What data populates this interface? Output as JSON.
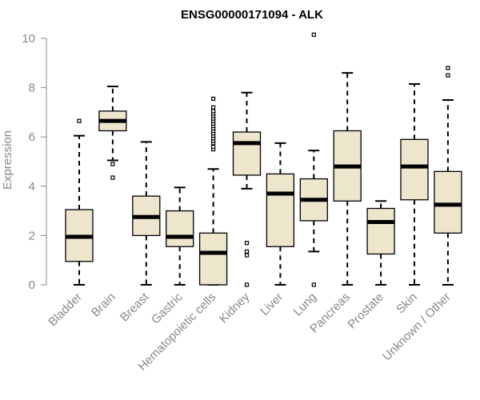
{
  "chart_data": {
    "type": "boxplot",
    "title": "ENSG00000171094 - ALK",
    "xlabel": "",
    "ylabel": "Expression",
    "ylim": [
      0,
      10
    ],
    "yticks": [
      0,
      2,
      4,
      6,
      8,
      10
    ],
    "grid": false,
    "colors": {
      "box_fill": "#ede6cd",
      "stroke": "#000000",
      "axis": "#888888",
      "title": "#000000"
    },
    "categories": [
      "Bladder",
      "Brain",
      "Breast",
      "Gastric",
      "Hematopoietic cells",
      "Kidney",
      "Liver",
      "Lung",
      "Pancreas",
      "Prostate",
      "Skin",
      "Unknown / Other"
    ],
    "boxes": [
      {
        "label": "Bladder",
        "whisker_low": 0.0,
        "q1": 0.95,
        "median": 1.95,
        "q3": 3.05,
        "whisker_high": 6.05,
        "outliers": [
          6.65
        ]
      },
      {
        "label": "Brain",
        "whisker_low": 5.05,
        "q1": 6.25,
        "median": 6.65,
        "q3": 7.05,
        "whisker_high": 8.05,
        "outliers": [
          4.9,
          4.35
        ]
      },
      {
        "label": "Breast",
        "whisker_low": 0.0,
        "q1": 2.0,
        "median": 2.75,
        "q3": 3.6,
        "whisker_high": 5.8,
        "outliers": []
      },
      {
        "label": "Gastric",
        "whisker_low": 0.0,
        "q1": 1.55,
        "median": 1.95,
        "q3": 3.0,
        "whisker_high": 3.95,
        "outliers": []
      },
      {
        "label": "Hematopoietic cells",
        "whisker_low": 0.0,
        "q1": 0.0,
        "median": 1.3,
        "q3": 2.1,
        "whisker_high": 4.7,
        "outliers": [
          5.5,
          5.6,
          5.75,
          5.85,
          5.95,
          6.05,
          6.15,
          6.25,
          6.35,
          6.45,
          6.55,
          6.65,
          6.75,
          6.85,
          6.95,
          7.05,
          7.2,
          7.55
        ]
      },
      {
        "label": "Kidney",
        "whisker_low": 3.9,
        "q1": 4.45,
        "median": 5.75,
        "q3": 6.2,
        "whisker_high": 7.8,
        "outliers": [
          1.7,
          1.35,
          1.2,
          0.0
        ]
      },
      {
        "label": "Liver",
        "whisker_low": 0.0,
        "q1": 1.55,
        "median": 3.7,
        "q3": 4.5,
        "whisker_high": 5.75,
        "outliers": []
      },
      {
        "label": "Lung",
        "whisker_low": 1.35,
        "q1": 2.6,
        "median": 3.45,
        "q3": 4.3,
        "whisker_high": 5.45,
        "outliers": [
          10.15,
          0.0
        ]
      },
      {
        "label": "Pancreas",
        "whisker_low": 0.0,
        "q1": 3.4,
        "median": 4.8,
        "q3": 6.25,
        "whisker_high": 8.6,
        "outliers": []
      },
      {
        "label": "Prostate",
        "whisker_low": 0.0,
        "q1": 1.25,
        "median": 2.55,
        "q3": 3.1,
        "whisker_high": 3.4,
        "outliers": []
      },
      {
        "label": "Skin",
        "whisker_low": 0.0,
        "q1": 3.45,
        "median": 4.8,
        "q3": 5.9,
        "whisker_high": 8.15,
        "outliers": []
      },
      {
        "label": "Unknown / Other",
        "whisker_low": 0.0,
        "q1": 2.1,
        "median": 3.25,
        "q3": 4.6,
        "whisker_high": 7.5,
        "outliers": [
          8.5,
          8.8
        ]
      }
    ]
  }
}
